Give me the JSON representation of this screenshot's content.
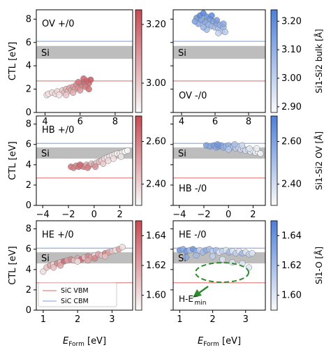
{
  "figure": {
    "row_ylabel": "CTL [eV]",
    "xlabel_main": "E",
    "xlabel_sub": "Form",
    "xlabel_unit": " [eV]",
    "si_label": "Si",
    "legend": {
      "vbm": "SiC VBM",
      "cbm": "SiC CBM"
    },
    "annotation": {
      "main": "H-E",
      "sup": "−",
      "sub": "min"
    },
    "colors": {
      "red_max": "#c64b53",
      "blue_max": "#4f7fd8",
      "vbm_line": "#e28585",
      "cbm_line": "#8fb1e6",
      "si_band": "#bdbdbd",
      "annotation": "#2e8b2e"
    }
  },
  "chart_data": [
    {
      "type": "scatter",
      "title": "OV +/0",
      "row": 0,
      "col": 0,
      "xlim": [
        3.5,
        9.0
      ],
      "xticks": [
        "4",
        "6",
        "8"
      ],
      "xtick_values": [
        4,
        6,
        8
      ],
      "ylim": [
        0,
        8.8
      ],
      "yticks": [
        "0",
        "2",
        "4",
        "6",
        "8"
      ],
      "ytick_values": [
        0,
        2,
        4,
        6,
        8
      ],
      "si_band": [
        4.6,
        5.7
      ],
      "vbm": 2.7,
      "cbm": 6.1,
      "colorbar": {
        "label": "",
        "range": [
          2.9,
          3.25
        ],
        "ticks": [
          "3.00",
          "3.20"
        ],
        "tick_values": [
          3.0,
          3.2
        ],
        "cmap": "red"
      },
      "points": [
        [
          4.1,
          1.5,
          2.95
        ],
        [
          4.2,
          1.6,
          2.95
        ],
        [
          4.4,
          1.7,
          2.97
        ],
        [
          4.6,
          1.6,
          2.96
        ],
        [
          4.7,
          1.8,
          2.98
        ],
        [
          4.8,
          1.5,
          2.95
        ],
        [
          5.0,
          1.9,
          3.0
        ],
        [
          5.1,
          1.7,
          3.02
        ],
        [
          5.2,
          2.0,
          3.05
        ],
        [
          5.3,
          1.8,
          3.03
        ],
        [
          5.4,
          2.1,
          3.08
        ],
        [
          5.5,
          1.9,
          3.06
        ],
        [
          5.6,
          2.2,
          3.1
        ],
        [
          5.7,
          2.0,
          3.09
        ],
        [
          5.8,
          2.4,
          3.12
        ],
        [
          5.9,
          2.1,
          3.11
        ],
        [
          6.0,
          2.5,
          3.15
        ],
        [
          6.1,
          2.3,
          3.14
        ],
        [
          6.2,
          2.6,
          3.18
        ],
        [
          6.3,
          2.4,
          3.17
        ],
        [
          6.4,
          2.7,
          3.2
        ],
        [
          6.5,
          2.5,
          3.19
        ],
        [
          6.6,
          2.8,
          3.22
        ],
        [
          5.2,
          1.5,
          3.0
        ],
        [
          5.6,
          1.7,
          3.05
        ],
        [
          6.0,
          1.9,
          3.1
        ],
        [
          6.3,
          2.2,
          3.15
        ],
        [
          6.5,
          2.0,
          3.18
        ],
        [
          5.9,
          2.6,
          3.16
        ],
        [
          6.2,
          2.9,
          3.2
        ]
      ]
    },
    {
      "type": "scatter",
      "title": "OV -/0",
      "row": 0,
      "col": 1,
      "xlim": [
        3.5,
        9.0
      ],
      "xticks": [
        "4",
        "6",
        "8"
      ],
      "xtick_values": [
        4,
        6,
        8
      ],
      "ylim": [
        0,
        8.8
      ],
      "yticks": [],
      "ytick_values": [],
      "si_band": [
        4.6,
        5.7
      ],
      "vbm": 2.7,
      "cbm": 6.1,
      "colorbar": {
        "label": "Si1-Si2 bulk [Å]",
        "range": [
          2.88,
          3.24
        ],
        "ticks": [
          "2.90",
          "3.00",
          "3.10",
          "3.20"
        ],
        "tick_values": [
          2.9,
          3.0,
          3.1,
          3.2
        ],
        "cmap": "blue"
      },
      "points": [
        [
          4.9,
          8.1,
          3.18
        ],
        [
          5.0,
          7.6,
          3.12
        ],
        [
          5.1,
          8.3,
          3.22
        ],
        [
          5.2,
          7.9,
          3.16
        ],
        [
          5.3,
          8.5,
          3.23
        ],
        [
          5.4,
          7.7,
          3.14
        ],
        [
          5.5,
          8.2,
          3.2
        ],
        [
          5.6,
          7.5,
          3.1
        ],
        [
          5.7,
          8.0,
          3.17
        ],
        [
          5.8,
          7.4,
          3.08
        ],
        [
          5.9,
          7.8,
          3.15
        ],
        [
          6.0,
          7.3,
          3.06
        ],
        [
          6.1,
          7.6,
          3.12
        ],
        [
          6.2,
          7.2,
          3.05
        ],
        [
          6.3,
          7.5,
          3.1
        ],
        [
          6.4,
          7.0,
          3.03
        ],
        [
          6.5,
          7.3,
          3.08
        ],
        [
          6.6,
          6.9,
          3.02
        ],
        [
          5.5,
          7.1,
          3.06
        ],
        [
          5.8,
          8.3,
          3.21
        ],
        [
          6.1,
          7.9,
          3.16
        ],
        [
          4.8,
          7.8,
          3.14
        ],
        [
          5.3,
          7.3,
          3.09
        ],
        [
          6.2,
          6.8,
          3.0
        ],
        [
          6.5,
          7.6,
          3.12
        ]
      ]
    },
    {
      "type": "scatter",
      "title": "HB +/0",
      "row": 1,
      "col": 0,
      "xlim": [
        -4.5,
        3.0
      ],
      "xticks": [
        "−4",
        "−2",
        "0",
        "2"
      ],
      "xtick_values": [
        -4,
        -2,
        0,
        2
      ],
      "ylim": [
        0,
        8.8
      ],
      "yticks": [
        "0",
        "2",
        "4",
        "6",
        "8"
      ],
      "ytick_values": [
        0,
        2,
        4,
        6,
        8
      ],
      "si_band": [
        4.6,
        5.7
      ],
      "vbm": 2.7,
      "cbm": 6.1,
      "colorbar": {
        "label": "",
        "range": [
          2.3,
          2.72
        ],
        "ticks": [
          "2.40",
          "2.60"
        ],
        "tick_values": [
          2.4,
          2.6
        ],
        "cmap": "red"
      },
      "points": [
        [
          -1.8,
          3.8,
          2.62
        ],
        [
          -1.6,
          3.7,
          2.6
        ],
        [
          -1.4,
          3.9,
          2.58
        ],
        [
          -1.2,
          3.8,
          2.62
        ],
        [
          -1.0,
          3.9,
          2.55
        ],
        [
          -0.8,
          3.8,
          2.6
        ],
        [
          -0.6,
          4.0,
          2.5
        ],
        [
          -0.4,
          3.9,
          2.58
        ],
        [
          -0.2,
          4.1,
          2.45
        ],
        [
          0.0,
          4.0,
          2.52
        ],
        [
          0.2,
          4.2,
          2.42
        ],
        [
          0.4,
          4.3,
          2.45
        ],
        [
          0.6,
          4.4,
          2.4
        ],
        [
          0.8,
          4.6,
          2.38
        ],
        [
          1.0,
          4.7,
          2.35
        ],
        [
          1.2,
          4.8,
          2.36
        ],
        [
          1.4,
          4.9,
          2.34
        ],
        [
          1.6,
          5.0,
          2.33
        ],
        [
          1.8,
          5.1,
          2.32
        ],
        [
          2.0,
          5.1,
          2.33
        ],
        [
          2.2,
          5.2,
          2.32
        ],
        [
          2.4,
          5.3,
          2.31
        ],
        [
          2.6,
          5.4,
          2.3
        ],
        [
          -0.5,
          3.7,
          2.6
        ],
        [
          0.1,
          3.8,
          2.55
        ],
        [
          0.7,
          4.1,
          2.42
        ],
        [
          1.1,
          4.4,
          2.38
        ],
        [
          1.5,
          4.6,
          2.36
        ],
        [
          2.1,
          4.8,
          2.34
        ],
        [
          -1.1,
          4.0,
          2.65
        ]
      ]
    },
    {
      "type": "scatter",
      "title": "HB -/0",
      "row": 1,
      "col": 1,
      "xlim": [
        -4.5,
        3.0
      ],
      "xticks": [
        "−4",
        "−2",
        "0",
        "2"
      ],
      "xtick_values": [
        -4,
        -2,
        0,
        2
      ],
      "ylim": [
        0,
        8.8
      ],
      "yticks": [],
      "ytick_values": [],
      "si_band": [
        4.6,
        5.7
      ],
      "vbm": 2.7,
      "cbm": 6.1,
      "colorbar": {
        "label": "Si1-Si2 OV [Å]",
        "range": [
          2.3,
          2.72
        ],
        "ticks": [
          "2.40",
          "2.60"
        ],
        "tick_values": [
          2.4,
          2.6
        ],
        "cmap": "blue"
      },
      "points": [
        [
          -1.8,
          5.9,
          2.62
        ],
        [
          -1.5,
          5.8,
          2.6
        ],
        [
          -1.2,
          5.9,
          2.63
        ],
        [
          -1.0,
          5.7,
          2.58
        ],
        [
          -0.8,
          5.8,
          2.62
        ],
        [
          -0.6,
          5.9,
          2.6
        ],
        [
          -0.4,
          5.7,
          2.56
        ],
        [
          -0.2,
          5.8,
          2.54
        ],
        [
          0.0,
          5.9,
          2.55
        ],
        [
          0.2,
          5.7,
          2.5
        ],
        [
          0.4,
          5.8,
          2.48
        ],
        [
          0.6,
          5.6,
          2.45
        ],
        [
          0.8,
          5.7,
          2.44
        ],
        [
          1.0,
          5.5,
          2.42
        ],
        [
          1.2,
          5.6,
          2.4
        ],
        [
          1.4,
          5.4,
          2.38
        ],
        [
          1.6,
          5.5,
          2.37
        ],
        [
          1.8,
          5.3,
          2.35
        ],
        [
          2.0,
          5.4,
          2.34
        ],
        [
          2.2,
          5.2,
          2.33
        ],
        [
          2.4,
          5.3,
          2.32
        ],
        [
          2.6,
          5.1,
          2.31
        ],
        [
          -0.9,
          6.0,
          2.64
        ],
        [
          0.5,
          6.0,
          2.5
        ],
        [
          1.1,
          5.9,
          2.42
        ],
        [
          1.7,
          5.6,
          2.36
        ],
        [
          2.3,
          5.6,
          2.33
        ],
        [
          0.0,
          5.5,
          2.47
        ]
      ]
    },
    {
      "type": "scatter",
      "title": "HE +/0",
      "row": 2,
      "col": 0,
      "xlim": [
        0.8,
        3.6
      ],
      "xticks": [
        "1",
        "2",
        "3"
      ],
      "xtick_values": [
        1,
        2,
        3
      ],
      "ylim": [
        0,
        8.8
      ],
      "yticks": [
        "0",
        "2",
        "4",
        "6",
        "8"
      ],
      "ytick_values": [
        0,
        2,
        4,
        6,
        8
      ],
      "si_band": [
        4.6,
        5.7
      ],
      "vbm": 2.7,
      "cbm": 6.1,
      "colorbar": {
        "label": "",
        "range": [
          1.59,
          1.65
        ],
        "ticks": [
          "1.60",
          "1.62",
          "1.64"
        ],
        "tick_values": [
          1.6,
          1.62,
          1.64
        ],
        "cmap": "red"
      },
      "points": [
        [
          1.0,
          3.8,
          1.6
        ],
        [
          1.1,
          4.2,
          1.61
        ],
        [
          1.2,
          4.4,
          1.62
        ],
        [
          1.3,
          4.5,
          1.6
        ],
        [
          1.4,
          4.6,
          1.63
        ],
        [
          1.5,
          4.7,
          1.61
        ],
        [
          1.6,
          4.8,
          1.64
        ],
        [
          1.7,
          4.9,
          1.62
        ],
        [
          1.8,
          5.0,
          1.63
        ],
        [
          1.9,
          4.9,
          1.61
        ],
        [
          2.0,
          5.1,
          1.62
        ],
        [
          2.1,
          5.0,
          1.64
        ],
        [
          2.2,
          5.2,
          1.61
        ],
        [
          2.3,
          5.3,
          1.63
        ],
        [
          2.4,
          5.2,
          1.62
        ],
        [
          2.5,
          5.4,
          1.6
        ],
        [
          2.6,
          5.5,
          1.62
        ],
        [
          2.7,
          5.4,
          1.61
        ],
        [
          2.8,
          5.6,
          1.63
        ],
        [
          2.9,
          5.7,
          1.62
        ],
        [
          3.0,
          5.8,
          1.61
        ],
        [
          3.1,
          5.9,
          1.6
        ],
        [
          3.2,
          6.0,
          1.62
        ],
        [
          3.3,
          6.2,
          1.6
        ],
        [
          1.5,
          4.4,
          1.62
        ],
        [
          2.0,
          4.8,
          1.6
        ],
        [
          2.5,
          5.1,
          1.63
        ],
        [
          2.8,
          5.3,
          1.61
        ],
        [
          1.3,
          4.2,
          1.61
        ],
        [
          2.3,
          4.9,
          1.62
        ]
      ]
    },
    {
      "type": "scatter",
      "title": "HE -/0",
      "row": 2,
      "col": 1,
      "xlim": [
        0.8,
        3.6
      ],
      "xticks": [
        "1",
        "2",
        "3"
      ],
      "xtick_values": [
        1,
        2,
        3
      ],
      "ylim": [
        0,
        8.8
      ],
      "yticks": [],
      "ytick_values": [],
      "si_band": [
        4.6,
        5.7
      ],
      "vbm": 2.7,
      "cbm": 6.1,
      "colorbar": {
        "label": "Si1-O [Å]",
        "range": [
          1.59,
          1.65
        ],
        "ticks": [
          "1.60",
          "1.62",
          "1.64"
        ],
        "tick_values": [
          1.6,
          1.62,
          1.64
        ],
        "cmap": "blue"
      },
      "points": [
        [
          1.0,
          5.9,
          1.64
        ],
        [
          1.1,
          6.0,
          1.63
        ],
        [
          1.2,
          5.8,
          1.64
        ],
        [
          1.3,
          5.9,
          1.62
        ],
        [
          1.4,
          6.0,
          1.64
        ],
        [
          1.5,
          5.8,
          1.63
        ],
        [
          1.6,
          5.9,
          1.61
        ],
        [
          1.7,
          5.7,
          1.62
        ],
        [
          1.8,
          5.9,
          1.63
        ],
        [
          1.9,
          6.0,
          1.62
        ],
        [
          2.0,
          5.8,
          1.61
        ],
        [
          2.1,
          5.9,
          1.62
        ],
        [
          2.2,
          5.7,
          1.6
        ],
        [
          2.3,
          5.8,
          1.61
        ],
        [
          2.4,
          5.9,
          1.6
        ],
        [
          2.5,
          5.7,
          1.62
        ],
        [
          2.6,
          5.8,
          1.6
        ],
        [
          2.7,
          5.6,
          1.61
        ],
        [
          2.8,
          5.8,
          1.6
        ],
        [
          2.9,
          5.6,
          1.62
        ],
        [
          3.0,
          5.7,
          1.6
        ],
        [
          3.1,
          5.5,
          1.61
        ],
        [
          3.2,
          5.6,
          1.6
        ],
        [
          1.5,
          5.4,
          1.62
        ],
        [
          2.0,
          5.3,
          1.61
        ],
        [
          2.3,
          5.0,
          1.6
        ],
        [
          2.6,
          4.7,
          1.6
        ],
        [
          2.9,
          4.6,
          1.6
        ],
        [
          3.1,
          4.2,
          1.6
        ],
        [
          1.2,
          5.2,
          1.63
        ]
      ]
    }
  ]
}
